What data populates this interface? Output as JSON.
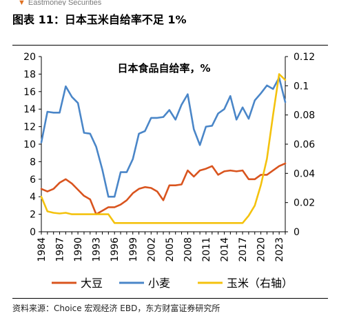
{
  "brand": "Eastmoney Securities",
  "figure": {
    "title": "图表 11：日本玉米自给率不足 1%",
    "source": "资料来源：Choice 宏观经济 EBD，东方财富证券研究所"
  },
  "colors": {
    "soy": "#d9541e",
    "wheat": "#4a86c8",
    "corn": "#f4c20d"
  },
  "chart_data": {
    "type": "line",
    "title": "日本食品自给率，%",
    "x": [
      1984,
      1985,
      1986,
      1987,
      1988,
      1989,
      1990,
      1991,
      1992,
      1993,
      1994,
      1995,
      1996,
      1997,
      1998,
      1999,
      2000,
      2001,
      2002,
      2003,
      2004,
      2005,
      2006,
      2007,
      2008,
      2009,
      2010,
      2011,
      2012,
      2013,
      2014,
      2015,
      2016,
      2017,
      2018,
      2019,
      2020,
      2021,
      2022,
      2023,
      2024
    ],
    "x_ticks": [
      "1984",
      "1987",
      "1990",
      "1993",
      "1996",
      "1999",
      "2002",
      "2005",
      "2008",
      "2011",
      "2014",
      "2017",
      "2020",
      "2023"
    ],
    "y_left": {
      "min": 0,
      "max": 20,
      "ticks": [
        "0",
        "2",
        "4",
        "6",
        "8",
        "10",
        "12",
        "14",
        "16",
        "18",
        "20"
      ]
    },
    "y_right": {
      "min": 0,
      "max": 0.12,
      "ticks": [
        "0",
        "0.02",
        "0.04",
        "0.06",
        "0.08",
        "0.1",
        "0.12"
      ]
    },
    "grid": false,
    "legend_position": "bottom",
    "series": [
      {
        "name": "大豆",
        "axis": "left",
        "color": "#d9541e",
        "values": [
          4.9,
          4.6,
          4.9,
          5.6,
          6.0,
          5.5,
          4.8,
          4.1,
          3.7,
          2.0,
          2.4,
          2.8,
          2.8,
          3.1,
          3.6,
          4.4,
          4.9,
          5.1,
          5.0,
          4.6,
          3.6,
          5.3,
          5.3,
          5.4,
          7.0,
          6.3,
          7.0,
          7.2,
          7.5,
          6.5,
          6.9,
          7.0,
          6.9,
          7.0,
          6.0,
          6.0,
          6.5,
          6.5,
          7.0,
          7.5,
          7.8
        ]
      },
      {
        "name": "小麦",
        "axis": "left",
        "color": "#4a86c8",
        "values": [
          10.2,
          13.7,
          13.6,
          13.6,
          16.6,
          15.4,
          14.7,
          11.3,
          11.2,
          9.7,
          7.1,
          4.0,
          4.0,
          6.8,
          6.8,
          8.3,
          11.2,
          11.5,
          13.0,
          13.0,
          13.1,
          13.9,
          12.8,
          14.5,
          15.7,
          11.7,
          9.9,
          12.0,
          12.1,
          13.5,
          14.0,
          15.5,
          12.8,
          14.2,
          12.9,
          15.0,
          15.8,
          16.7,
          16.3,
          17.6,
          14.8
        ]
      },
      {
        "name": "玉米（右轴）",
        "axis": "right",
        "color": "#f4c20d",
        "values": [
          0.024,
          0.014,
          0.013,
          0.0125,
          0.013,
          0.012,
          0.012,
          0.012,
          0.012,
          0.012,
          0.012,
          0.012,
          0.006,
          0.006,
          0.006,
          0.006,
          0.006,
          0.006,
          0.006,
          0.006,
          0.006,
          0.006,
          0.006,
          0.006,
          0.006,
          0.006,
          0.006,
          0.006,
          0.006,
          0.006,
          0.006,
          0.006,
          0.006,
          0.006,
          0.011,
          0.018,
          0.032,
          0.05,
          0.08,
          0.108,
          0.104
        ]
      }
    ]
  }
}
